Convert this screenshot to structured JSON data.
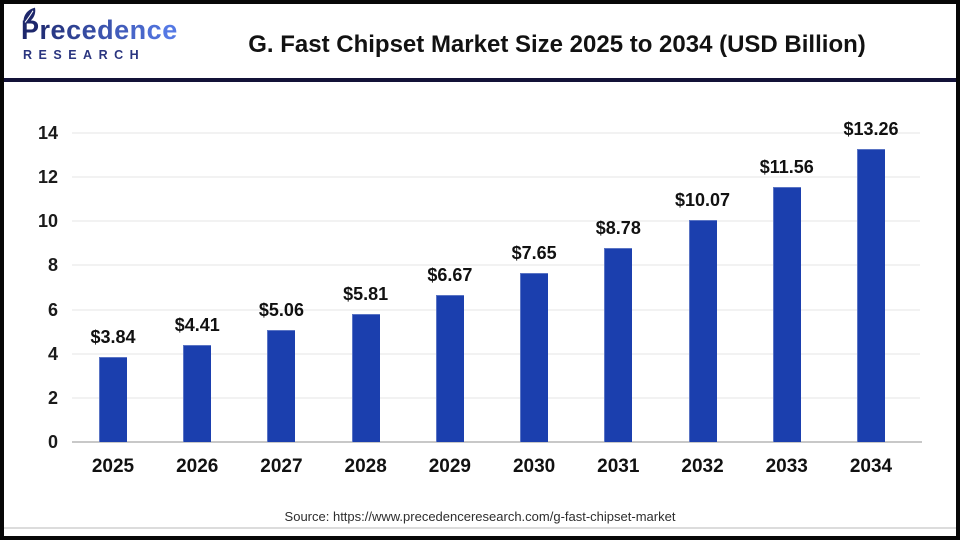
{
  "header": {
    "logo": {
      "name": "Precedence",
      "subtext": "RESEARCH"
    },
    "title": "G. Fast Chipset Market Size 2025 to 2034 (USD Billion)"
  },
  "chart_data": {
    "type": "bar",
    "title": "G. Fast Chipset Market Size 2025 to 2034 (USD Billion)",
    "categories": [
      "2025",
      "2026",
      "2027",
      "2028",
      "2029",
      "2030",
      "2031",
      "2032",
      "2033",
      "2034"
    ],
    "values": [
      3.84,
      4.41,
      5.06,
      5.81,
      6.67,
      7.65,
      8.78,
      10.07,
      11.56,
      13.26
    ],
    "value_labels": [
      "$3.84",
      "$4.41",
      "$5.06",
      "$5.81",
      "$6.67",
      "$7.65",
      "$8.78",
      "$10.07",
      "$11.56",
      "$13.26"
    ],
    "xlabel": "",
    "ylabel": "",
    "ylim": [
      0,
      14
    ],
    "yticks": [
      0,
      2,
      4,
      6,
      8,
      10,
      12,
      14
    ],
    "grid": "horizontal-faint",
    "legend": "none",
    "bar_color": "#1b3fae"
  },
  "footer": {
    "source": "Source: https://www.precedenceresearch.com/g-fast-chipset-market"
  },
  "colors": {
    "bar": "#1b3fae",
    "frame_border": "#070707",
    "header_divider": "#131238",
    "baseline": "#c8c8c8",
    "gridline": "#f2f2f2",
    "logo_navy": "#1d276b",
    "logo_blue": "#5478e4",
    "title_text": "#121212"
  }
}
